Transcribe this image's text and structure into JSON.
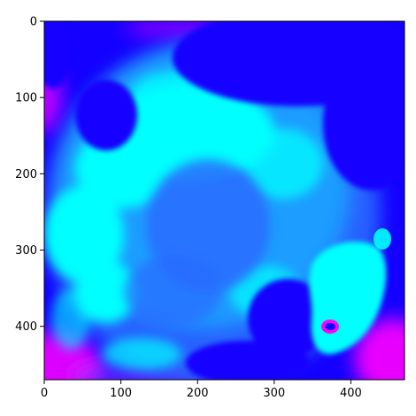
{
  "chart_data": {
    "type": "heatmap",
    "title": "",
    "xlabel": "",
    "ylabel": "",
    "xlim": [
      0,
      470
    ],
    "ylim": [
      470,
      0
    ],
    "x_ticks": [
      0,
      100,
      200,
      300,
      400
    ],
    "y_ticks": [
      0,
      100,
      200,
      300,
      400
    ],
    "x_tick_labels": [
      "0",
      "100",
      "200",
      "300",
      "400"
    ],
    "y_tick_labels": [
      "0",
      "100",
      "200",
      "300",
      "400"
    ],
    "grid": false,
    "colormap": "cool",
    "colors": {
      "background": "#1400ff",
      "cyan": "#00ffff",
      "mid_blue": "#2a6bff",
      "light_blue": "#1aa8ff",
      "magenta": "#ff00ff",
      "violet": "#8a3cff"
    }
  }
}
